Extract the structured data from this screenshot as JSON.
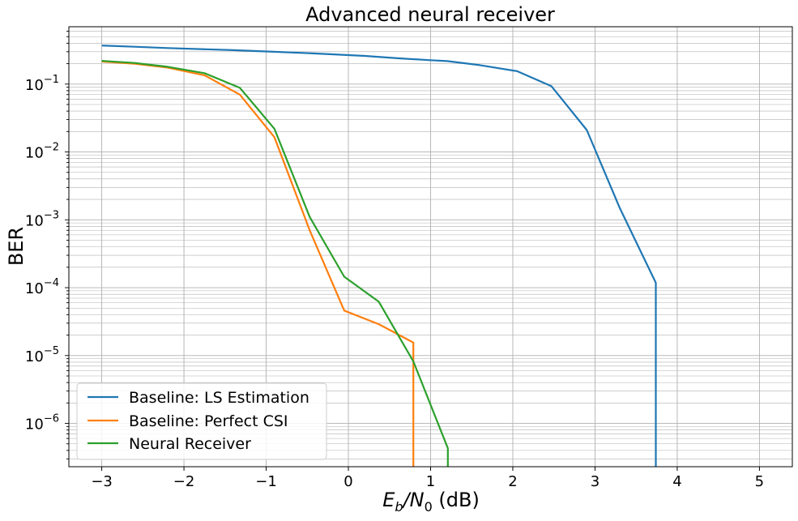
{
  "chart_data": {
    "type": "line",
    "title": "Advanced neural receiver",
    "xlabel_main": "E",
    "xlabel_sub1": "b",
    "xlabel_slash": "/N",
    "xlabel_sub2": "0",
    "xlabel_unit": " (dB)",
    "ylabel": "BER",
    "xlim": [
      -3.4,
      5.4
    ],
    "ylim": [
      2.3e-07,
      0.7
    ],
    "y_scale": "log",
    "grid": true,
    "legend_position": "lower-left",
    "x_ticks": [
      -3,
      -2,
      -1,
      0,
      1,
      2,
      3,
      4,
      5
    ],
    "x_tick_labels": [
      "−3",
      "−2",
      "−1",
      "0",
      "1",
      "2",
      "3",
      "4",
      "5"
    ],
    "y_ticks": [
      {
        "value": 1e-06,
        "base": "10",
        "exp": "−6"
      },
      {
        "value": 1e-05,
        "base": "10",
        "exp": "−5"
      },
      {
        "value": 0.0001,
        "base": "10",
        "exp": "−4"
      },
      {
        "value": 0.001,
        "base": "10",
        "exp": "−3"
      },
      {
        "value": 0.01,
        "base": "10",
        "exp": "−2"
      },
      {
        "value": 0.1,
        "base": "10",
        "exp": "−1"
      }
    ],
    "series": [
      {
        "name": "Baseline: LS Estimation",
        "color": "#1f77b4",
        "x": [
          -3.0,
          -2.6,
          -2.2,
          -1.8,
          -1.4,
          -1.0,
          -0.6,
          -0.2,
          0.2,
          0.6,
          1.0,
          1.2,
          1.6,
          2.05,
          2.47,
          2.9,
          3.3,
          3.74,
          3.74
        ],
        "y": [
          0.37,
          0.355,
          0.34,
          0.328,
          0.316,
          0.303,
          0.29,
          0.275,
          0.26,
          0.24,
          0.225,
          0.218,
          0.19,
          0.155,
          0.093,
          0.021,
          0.0015,
          0.000118,
          2.3e-07
        ]
      },
      {
        "name": "Baseline: Perfect CSI",
        "color": "#ff7f0e",
        "x": [
          -3.0,
          -2.6,
          -2.2,
          -1.75,
          -1.32,
          -0.9,
          -0.47,
          -0.05,
          0.37,
          0.79,
          0.79
        ],
        "y": [
          0.215,
          0.2,
          0.175,
          0.135,
          0.07,
          0.0165,
          0.0007,
          4.6e-05,
          2.9e-05,
          1.55e-05,
          2.3e-07
        ]
      },
      {
        "name": "Neural Receiver",
        "color": "#2ca02c",
        "x": [
          -3.0,
          -2.6,
          -2.2,
          -1.75,
          -1.32,
          -0.9,
          -0.47,
          -0.05,
          0.37,
          0.79,
          1.21,
          1.21
        ],
        "y": [
          0.22,
          0.205,
          0.18,
          0.145,
          0.088,
          0.022,
          0.0011,
          0.000145,
          6.2e-05,
          8.2e-06,
          4.3e-07,
          2.3e-07
        ]
      }
    ]
  }
}
